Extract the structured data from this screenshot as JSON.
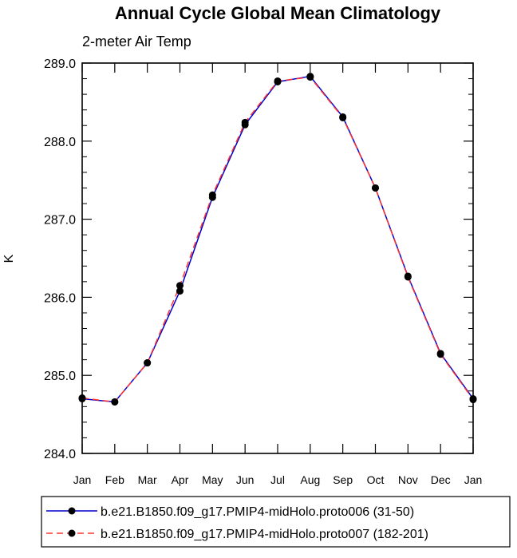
{
  "chart_data": {
    "type": "line",
    "title": "Annual Cycle Global Mean Climatology",
    "subtitle": "2-meter Air Temp",
    "ylabel": "K",
    "xlabel": "",
    "ylim": [
      284.0,
      289.0
    ],
    "yticks": [
      "284.0",
      "285.0",
      "286.0",
      "287.0",
      "288.0",
      "289.0"
    ],
    "categories": [
      "Jan",
      "Feb",
      "Mar",
      "Apr",
      "May",
      "Jun",
      "Jul",
      "Aug",
      "Sep",
      "Oct",
      "Nov",
      "Dec",
      "Jan"
    ],
    "grid": false,
    "legend_position": "bottom",
    "series": [
      {
        "name": "b.e21.B1850.f09_g17.PMIP4-midHolo.proto006 (31-50)",
        "color": "#0000cc",
        "dash": "solid",
        "values": [
          284.7,
          284.66,
          285.16,
          286.08,
          287.28,
          288.21,
          288.76,
          288.83,
          288.31,
          287.4,
          286.27,
          285.28,
          284.7
        ]
      },
      {
        "name": "b.e21.B1850.f09_g17.PMIP4-midHolo.proto007 (182-201)",
        "color": "#ff3333",
        "dash": "dashed",
        "values": [
          284.71,
          284.66,
          285.16,
          286.15,
          287.31,
          288.24,
          288.77,
          288.82,
          288.3,
          287.4,
          286.26,
          285.27,
          284.69
        ]
      }
    ]
  }
}
